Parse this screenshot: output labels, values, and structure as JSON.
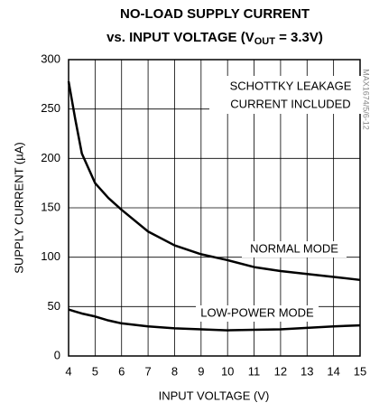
{
  "chart_data": {
    "type": "line",
    "title": {
      "line1": "NO-LOAD SUPPLY CURRENT",
      "line2": [
        "vs. INPUT VOLTAGE (V",
        "OUT",
        " = 3.3V)"
      ]
    },
    "xlabel": "INPUT VOLTAGE (V)",
    "ylabel": "SUPPLY CURRENT (µA)",
    "annotations": [
      "SCHOTTKY LEAKAGE",
      "CURRENT INCLUDED"
    ],
    "watermark": "MAX1674/5/6-12",
    "x": [
      4,
      4.25,
      4.5,
      5,
      5.5,
      6,
      7,
      8,
      9,
      10,
      11,
      12,
      13,
      14,
      15
    ],
    "series": [
      {
        "name": "NORMAL MODE",
        "color": "#000000",
        "values": [
          278,
          240,
          205,
          175,
          160,
          148,
          126,
          112,
          103,
          97,
          90,
          86,
          83,
          80,
          77
        ]
      },
      {
        "name": "LOW-POWER MODE",
        "color": "#000000",
        "values": [
          47,
          45,
          43,
          40,
          36,
          33,
          30,
          28,
          27,
          26,
          26.5,
          27,
          28.5,
          30,
          31
        ]
      }
    ],
    "xlim": [
      4,
      15
    ],
    "xticks": [
      4,
      5,
      6,
      7,
      8,
      9,
      10,
      11,
      12,
      13,
      14,
      15
    ],
    "ylim": [
      0,
      300
    ],
    "yticks": [
      0,
      50,
      100,
      150,
      200,
      250,
      300
    ],
    "grid": true
  }
}
